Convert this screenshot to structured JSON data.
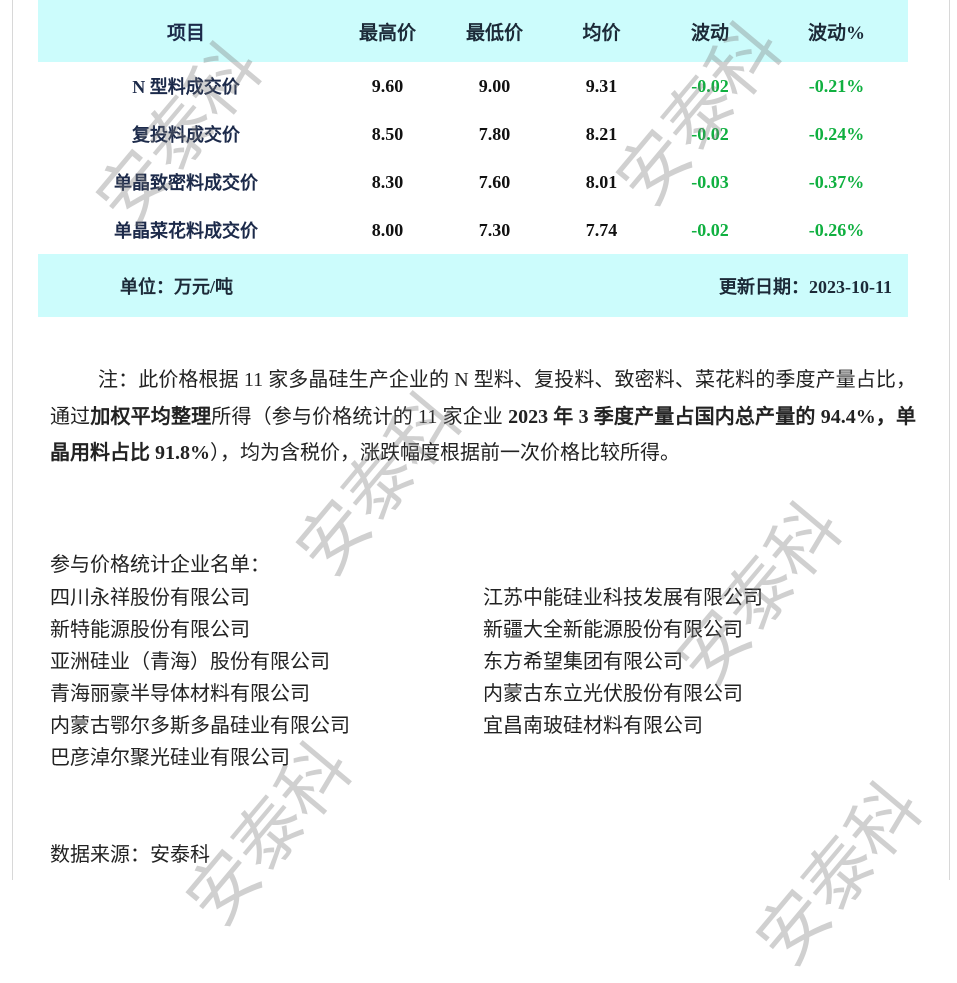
{
  "table": {
    "headers": [
      "项目",
      "最高价",
      "最低价",
      "均价",
      "波动",
      "波动%"
    ],
    "rows": [
      {
        "item": "N 型料成交价",
        "high": "9.60",
        "low": "9.00",
        "avg": "9.31",
        "change": "-0.02",
        "change_pct": "-0.21%"
      },
      {
        "item": "复投料成交价",
        "high": "8.50",
        "low": "7.80",
        "avg": "8.21",
        "change": "-0.02",
        "change_pct": "-0.24%"
      },
      {
        "item": "单晶致密料成交价",
        "high": "8.30",
        "low": "7.60",
        "avg": "8.01",
        "change": "-0.03",
        "change_pct": "-0.37%"
      },
      {
        "item": "单晶菜花料成交价",
        "high": "8.00",
        "low": "7.30",
        "avg": "7.74",
        "change": "-0.02",
        "change_pct": "-0.26%"
      }
    ],
    "unit": "单位：万元/吨",
    "update_date": "更新日期：2023-10-11"
  },
  "note": {
    "part1": "注：此价格根据 11 家多晶硅生产企业的 N 型料、复投料、致密料、菜花料的季度产量占比，通过",
    "part2": "加权平均整理",
    "part3": "所得（参与价格统计的 11 家企业 ",
    "part4": "2023 年 3 季度产量占国内总产量的 94.4%，单晶用料占比 91.8%",
    "part5": "），均为含税价，涨跌幅度根据前一次价格比较所得。"
  },
  "companies": {
    "title": "参与价格统计企业名单：",
    "left": [
      "四川永祥股份有限公司",
      "新特能源股份有限公司",
      "亚洲硅业（青海）股份有限公司",
      "青海丽豪半导体材料有限公司",
      "内蒙古鄂尔多斯多晶硅业有限公司",
      "巴彦淖尔聚光硅业有限公司"
    ],
    "right": [
      "江苏中能硅业科技发展有限公司",
      "新疆大全新能源股份有限公司",
      "东方希望集团有限公司",
      "内蒙古东立光伏股份有限公司",
      "宜昌南玻硅材料有限公司"
    ]
  },
  "source": "数据来源：安泰科",
  "watermark": "安泰科",
  "colors": {
    "header_bg": "#ccfcfc",
    "negative": "#10b040"
  }
}
